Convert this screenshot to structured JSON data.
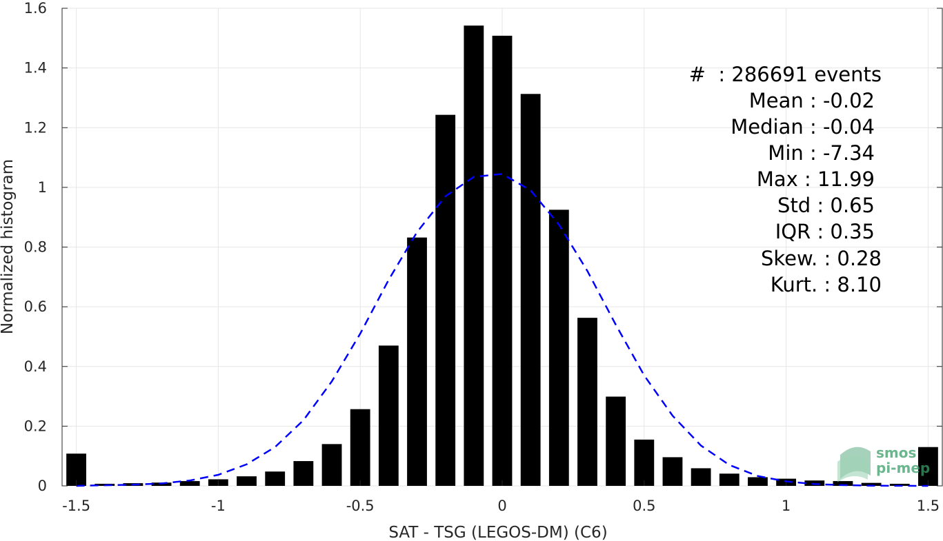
{
  "chart_data": {
    "type": "bar",
    "xlabel": "SAT - TSG (LEGOS-DM) (C6)",
    "ylabel": "Normalized histogram",
    "xlim": [
      -1.55,
      1.55
    ],
    "ylim": [
      0,
      1.6
    ],
    "x_ticks": [
      -1.5,
      -1,
      -0.5,
      0,
      0.5,
      1,
      1.5
    ],
    "x_tick_labels": [
      "-1.5",
      "-1",
      "-0.5",
      "0",
      "0.5",
      "1",
      "1.5"
    ],
    "y_ticks": [
      0,
      0.2,
      0.4,
      0.6,
      0.8,
      1,
      1.2,
      1.4,
      1.6
    ],
    "y_tick_labels": [
      "0",
      "0.2",
      "0.4",
      "0.6",
      "0.8",
      "1",
      "1.2",
      "1.4",
      "1.6"
    ],
    "grid": true,
    "bar_color": "#000000",
    "bin_width": 0.1,
    "bins": [
      -1.5,
      -1.4,
      -1.3,
      -1.2,
      -1.1,
      -1.0,
      -0.9,
      -0.8,
      -0.7,
      -0.6,
      -0.5,
      -0.4,
      -0.3,
      -0.2,
      -0.1,
      0.0,
      0.1,
      0.2,
      0.3,
      0.4,
      0.5,
      0.6,
      0.7,
      0.8,
      0.9,
      1.0,
      1.1,
      1.2,
      1.3,
      1.4,
      1.5
    ],
    "values": [
      0.108,
      0.007,
      0.009,
      0.011,
      0.016,
      0.022,
      0.032,
      0.048,
      0.083,
      0.14,
      0.257,
      0.47,
      0.832,
      1.243,
      1.542,
      1.508,
      1.313,
      0.925,
      0.563,
      0.299,
      0.155,
      0.096,
      0.059,
      0.041,
      0.029,
      0.024,
      0.018,
      0.016,
      0.01,
      0.007,
      0.13
    ],
    "fit_curve": {
      "style": "dashed",
      "color": "#0000ff",
      "x": [
        -1.5,
        -1.4,
        -1.3,
        -1.2,
        -1.1,
        -1.0,
        -0.9,
        -0.8,
        -0.7,
        -0.6,
        -0.5,
        -0.4,
        -0.3,
        -0.2,
        -0.1,
        0.0,
        0.1,
        0.2,
        0.3,
        0.4,
        0.5,
        0.6,
        0.7,
        0.8,
        0.9,
        1.0,
        1.1,
        1.2,
        1.3,
        1.4,
        1.5
      ],
      "y": [
        0.0,
        0.002,
        0.004,
        0.008,
        0.018,
        0.037,
        0.072,
        0.13,
        0.22,
        0.35,
        0.51,
        0.69,
        0.85,
        0.97,
        1.035,
        1.045,
        0.99,
        0.875,
        0.72,
        0.54,
        0.37,
        0.235,
        0.135,
        0.07,
        0.033,
        0.015,
        0.006,
        0.0025,
        0.0008,
        0.0002,
        0.0
      ]
    },
    "annotations": [
      "#  : 286691 events",
      "Mean : -0.02",
      "Median : -0.04",
      "Min : -7.34",
      "Max : 11.99",
      "Std : 0.65",
      "IQR : 0.35",
      "Skew. : 0.28",
      "Kurt. : 8.10"
    ]
  },
  "logo": {
    "line1": "smos",
    "line2": "pi-mep",
    "color": "#3a9d6a"
  }
}
